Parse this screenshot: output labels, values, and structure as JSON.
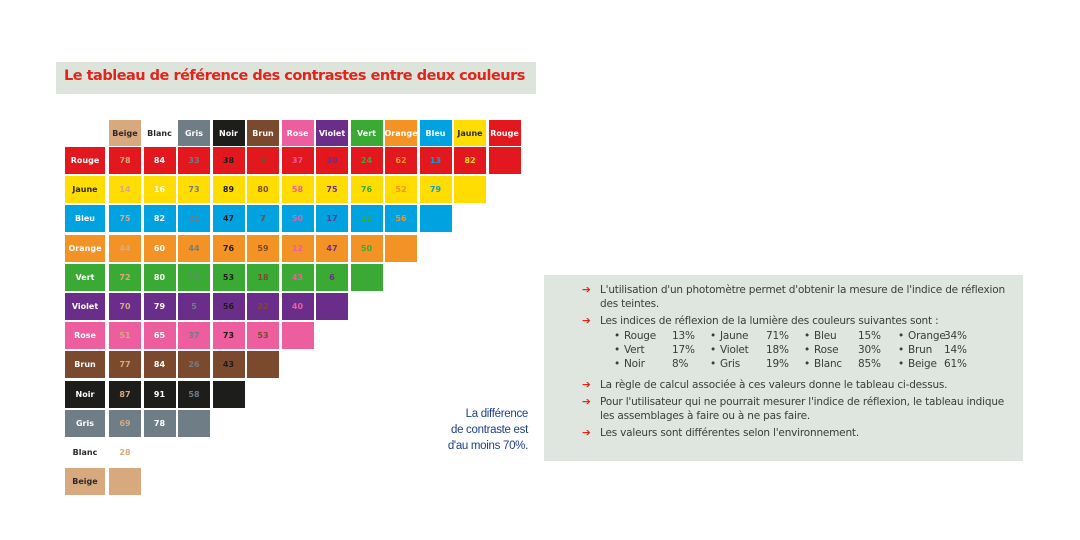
{
  "title": "Le tableau de référence des contrastes entre deux couleurs",
  "colors": {
    "Rouge": "#e3171e",
    "Jaune": "#ffdd00",
    "Bleu": "#00a2e0",
    "Orange": "#f39325",
    "Vert": "#3aaa35",
    "Violet": "#6b2d8a",
    "Rose": "#ec5e9e",
    "Brun": "#7b4a2e",
    "Noir": "#1d1d1b",
    "Gris": "#6f7d87",
    "Blanc": "#ffffff",
    "Beige": "#d8a97f"
  },
  "column_headers": [
    "Beige",
    "Blanc",
    "Gris",
    "Noir",
    "Brun",
    "Rose",
    "Violet",
    "Vert",
    "Orange",
    "Bleu",
    "Jaune",
    "Rouge"
  ],
  "rows": [
    {
      "label": "Rouge",
      "values": [
        "78",
        "84",
        "33",
        "38",
        "9",
        "37",
        "30",
        "24",
        "62",
        "13",
        "82"
      ]
    },
    {
      "label": "Jaune",
      "values": [
        "14",
        "16",
        "73",
        "89",
        "80",
        "58",
        "75",
        "76",
        "52",
        "79"
      ]
    },
    {
      "label": "Bleu",
      "values": [
        "75",
        "82",
        "21",
        "47",
        "7",
        "50",
        "17",
        "12",
        "56"
      ]
    },
    {
      "label": "Orange",
      "values": [
        "44",
        "60",
        "44",
        "76",
        "59",
        "12",
        "47",
        "50"
      ]
    },
    {
      "label": "Vert",
      "values": [
        "72",
        "80",
        "11",
        "53",
        "18",
        "43",
        "6"
      ]
    },
    {
      "label": "Violet",
      "values": [
        "70",
        "79",
        "5",
        "56",
        "22",
        "40"
      ]
    },
    {
      "label": "Rose",
      "values": [
        "51",
        "65",
        "37",
        "73",
        "53"
      ]
    },
    {
      "label": "Brun",
      "values": [
        "77",
        "84",
        "26",
        "43"
      ]
    },
    {
      "label": "Noir",
      "values": [
        "87",
        "91",
        "58"
      ]
    },
    {
      "label": "Gris",
      "values": [
        "69",
        "78"
      ]
    },
    {
      "label": "Blanc",
      "values": [
        "28"
      ]
    },
    {
      "label": "Beige",
      "values": []
    }
  ],
  "note": [
    "La différence",
    "de contraste est",
    "d'au moins 70%."
  ],
  "info": {
    "points": [
      "L'utilisation d'un photomètre permet d'obtenir la mesure de l'indice de réflexion des teintes.",
      "Les indices de réflexion de la lumière des couleurs suivantes sont :",
      "La règle de calcul associée à ces valeurs donne le tableau ci-dessus.",
      "Pour l'utilisateur qui ne pourrait mesurer l'indice de réflexion, le tableau indique les assemblages à faire ou à ne pas faire.",
      "Les valeurs sont différentes selon l'environnement."
    ],
    "reflectance": [
      [
        {
          "name": "Rouge",
          "pct": "13%"
        },
        {
          "name": "Jaune",
          "pct": "71%"
        },
        {
          "name": "Bleu",
          "pct": "15%"
        },
        {
          "name": "Orange",
          "pct": "34%"
        }
      ],
      [
        {
          "name": "Vert",
          "pct": "17%"
        },
        {
          "name": "Violet",
          "pct": "18%"
        },
        {
          "name": "Rose",
          "pct": "30%"
        },
        {
          "name": "Brun",
          "pct": "14%"
        }
      ],
      [
        {
          "name": "Noir",
          "pct": "8%"
        },
        {
          "name": "Gris",
          "pct": "19%"
        },
        {
          "name": "Blanc",
          "pct": "85%"
        },
        {
          "name": "Beige",
          "pct": "61%"
        }
      ]
    ]
  }
}
